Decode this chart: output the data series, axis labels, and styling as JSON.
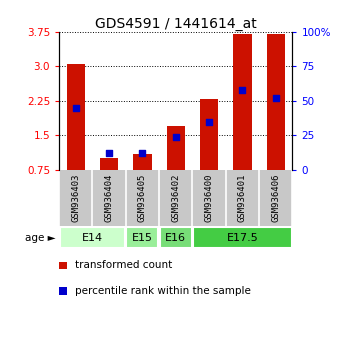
{
  "title": "GDS4591 / 1441614_at",
  "samples": [
    "GSM936403",
    "GSM936404",
    "GSM936405",
    "GSM936402",
    "GSM936400",
    "GSM936401",
    "GSM936406"
  ],
  "transformed_count": [
    3.05,
    1.0,
    1.1,
    1.7,
    2.3,
    3.7,
    3.7
  ],
  "percentile_rank": [
    45,
    12,
    12,
    24,
    35,
    58,
    52
  ],
  "ylim_left": [
    0.75,
    3.75
  ],
  "ylim_right": [
    0,
    100
  ],
  "yticks_left": [
    0.75,
    1.5,
    2.25,
    3.0,
    3.75
  ],
  "yticks_right": [
    0,
    25,
    50,
    75,
    100
  ],
  "ytick_labels_right": [
    "0",
    "25",
    "50",
    "75",
    "100%"
  ],
  "bar_color": "#cc1100",
  "blue_color": "#0000cc",
  "age_groups": [
    {
      "label": "E14",
      "samples": [
        "GSM936403",
        "GSM936404"
      ],
      "color": "#ccffcc"
    },
    {
      "label": "E15",
      "samples": [
        "GSM936405"
      ],
      "color": "#99ee99"
    },
    {
      "label": "E16",
      "samples": [
        "GSM936402"
      ],
      "color": "#77dd77"
    },
    {
      "label": "E17.5",
      "samples": [
        "GSM936400",
        "GSM936401",
        "GSM936406"
      ],
      "color": "#44cc44"
    }
  ],
  "legend_items": [
    {
      "label": "transformed count",
      "color": "#cc1100"
    },
    {
      "label": "percentile rank within the sample",
      "color": "#0000cc"
    }
  ],
  "title_fontsize": 10,
  "tick_fontsize": 7.5,
  "sample_fontsize": 6.5,
  "age_fontsize": 8,
  "legend_fontsize": 7.5,
  "bar_width": 0.55
}
